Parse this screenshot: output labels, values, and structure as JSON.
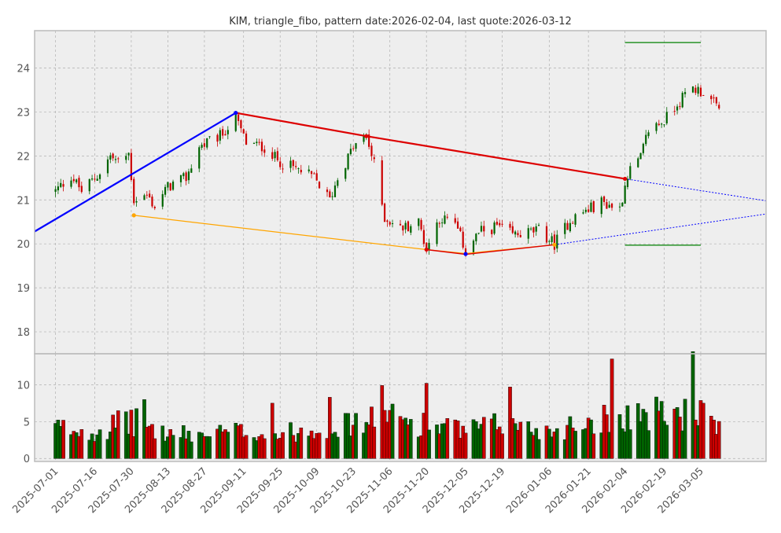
{
  "chart_data": {
    "type": "candlestick",
    "title": "KIM, triangle_fibo, pattern date:2026-02-04, last quote:2026-03-12",
    "xlabel": "",
    "ylabel": "",
    "grid": true,
    "price_panel": {
      "ylim": [
        17.5,
        24.85
      ],
      "yticks": [
        "18",
        "19",
        "20",
        "21",
        "22",
        "23",
        "24"
      ]
    },
    "volume_panel": {
      "ylim": [
        -0.4,
        14.2
      ],
      "yticks": [
        "0",
        "5",
        "10"
      ]
    },
    "xlim": [
      "2025-06-23",
      "2026-03-30"
    ],
    "xticks": [
      "2025-07-01",
      "2025-07-16",
      "2025-07-30",
      "2025-08-13",
      "2025-08-27",
      "2025-09-11",
      "2025-09-25",
      "2025-10-09",
      "2025-10-23",
      "2025-11-06",
      "2025-11-20",
      "2025-12-05",
      "2025-12-19",
      "2026-01-06",
      "2026-01-21",
      "2026-02-04",
      "2026-02-19",
      "2026-03-05"
    ],
    "price_path": [
      [
        "2025-07-01",
        21.2
      ],
      [
        "2025-07-07",
        21.55
      ],
      [
        "2025-07-11",
        21.2
      ],
      [
        "2025-07-17",
        21.55
      ],
      [
        "2025-07-22",
        22.0
      ],
      [
        "2025-07-25",
        21.85
      ],
      [
        "2025-07-29",
        22.05
      ],
      [
        "2025-07-31",
        21.0
      ],
      [
        "2025-08-05",
        21.1
      ],
      [
        "2025-08-08",
        20.85
      ],
      [
        "2025-08-13",
        21.3
      ],
      [
        "2025-08-20",
        21.5
      ],
      [
        "2025-08-25",
        22.2
      ],
      [
        "2025-09-02",
        22.45
      ],
      [
        "2025-09-08",
        22.85
      ],
      [
        "2025-09-12",
        22.3
      ],
      [
        "2025-09-19",
        22.2
      ],
      [
        "2025-09-24",
        21.9
      ],
      [
        "2025-10-01",
        21.7
      ],
      [
        "2025-10-08",
        21.5
      ],
      [
        "2025-10-14",
        21.0
      ],
      [
        "2025-10-17",
        21.5
      ],
      [
        "2025-10-23",
        22.2
      ],
      [
        "2025-10-28",
        22.45
      ],
      [
        "2025-10-31",
        21.8
      ],
      [
        "2025-11-04",
        20.6
      ],
      [
        "2025-11-10",
        20.35
      ],
      [
        "2025-11-17",
        20.5
      ],
      [
        "2025-11-20",
        19.9
      ],
      [
        "2025-11-25",
        20.6
      ],
      [
        "2025-12-01",
        20.45
      ],
      [
        "2025-12-05",
        19.85
      ],
      [
        "2025-12-10",
        20.25
      ],
      [
        "2025-12-17",
        20.4
      ],
      [
        "2025-12-23",
        20.2
      ],
      [
        "2026-01-02",
        20.3
      ],
      [
        "2026-01-08",
        20.0
      ],
      [
        "2026-01-14",
        20.55
      ],
      [
        "2026-01-20",
        20.75
      ],
      [
        "2026-01-26",
        20.95
      ],
      [
        "2026-02-02",
        20.8
      ],
      [
        "2026-02-05",
        21.6
      ],
      [
        "2026-02-10",
        21.95
      ],
      [
        "2026-02-13",
        22.6
      ],
      [
        "2026-02-19",
        22.8
      ],
      [
        "2026-02-24",
        23.2
      ],
      [
        "2026-03-02",
        23.55
      ],
      [
        "2026-03-06",
        23.45
      ],
      [
        "2026-03-12",
        23.05
      ]
    ],
    "volume_path": [
      [
        "2025-07-01",
        4.5
      ],
      [
        "2025-07-15",
        4.0
      ],
      [
        "2025-07-30",
        5.5
      ],
      [
        "2025-08-13",
        3.5
      ],
      [
        "2025-08-27",
        3.5
      ],
      [
        "2025-09-11",
        4.0
      ],
      [
        "2025-09-25",
        3.5
      ],
      [
        "2025-10-09",
        4.5
      ],
      [
        "2025-10-23",
        5.0
      ],
      [
        "2025-11-06",
        6.0
      ],
      [
        "2025-11-20",
        5.0
      ],
      [
        "2025-12-05",
        4.0
      ],
      [
        "2025-12-19",
        5.0
      ],
      [
        "2026-01-06",
        4.0
      ],
      [
        "2026-01-21",
        5.5
      ],
      [
        "2026-02-04",
        6.5
      ],
      [
        "2026-02-19",
        6.5
      ],
      [
        "2026-03-05",
        6.5
      ],
      [
        "2026-03-12",
        4.0
      ]
    ],
    "volume_spikes": [
      [
        "2025-08-04",
        8.0
      ],
      [
        "2025-09-22",
        7.5
      ],
      [
        "2025-10-14",
        8.3
      ],
      [
        "2025-11-03",
        9.9
      ],
      [
        "2025-11-20",
        10.2
      ],
      [
        "2025-12-22",
        9.7
      ],
      [
        "2026-01-30",
        13.5
      ],
      [
        "2026-03-02",
        14.5
      ]
    ],
    "lines": [
      {
        "color": "#0000ff",
        "width": 2.2,
        "points": [
          [
            "2025-06-23",
            20.28
          ],
          [
            "2025-09-08",
            22.98
          ]
        ]
      },
      {
        "color": "#dd0000",
        "width": 2.2,
        "points": [
          [
            "2025-09-08",
            22.98
          ],
          [
            "2025-10-28",
            22.45
          ],
          [
            "2026-02-04",
            21.48
          ]
        ]
      },
      {
        "color": "#ffa500",
        "width": 1.2,
        "points": [
          [
            "2025-07-31",
            20.65
          ],
          [
            "2025-11-20",
            19.87
          ],
          [
            "2025-12-05",
            19.78
          ],
          [
            "2026-01-08",
            19.98
          ]
        ]
      },
      {
        "color": "#dd0000",
        "width": 1.4,
        "points": [
          [
            "2025-11-20",
            19.87
          ],
          [
            "2025-12-05",
            19.76
          ],
          [
            "2026-01-08",
            19.98
          ]
        ]
      },
      {
        "color": "#0000ff",
        "width": 1.0,
        "dash": "2,2",
        "points": [
          [
            "2026-02-04",
            21.48
          ],
          [
            "2026-03-30",
            20.98
          ]
        ]
      },
      {
        "color": "#0000ff",
        "width": 1.0,
        "dash": "2,2",
        "points": [
          [
            "2026-01-08",
            19.98
          ],
          [
            "2026-03-30",
            20.68
          ]
        ]
      },
      {
        "color": "#008000",
        "width": 1.2,
        "points": [
          [
            "2026-02-04",
            24.58
          ],
          [
            "2026-03-05",
            24.58
          ]
        ]
      },
      {
        "color": "#008000",
        "width": 1.2,
        "points": [
          [
            "2026-02-04",
            19.97
          ],
          [
            "2026-03-05",
            19.97
          ]
        ]
      }
    ],
    "markers": [
      {
        "date": "2025-09-08",
        "value": 22.98,
        "color": "#0000ff"
      },
      {
        "date": "2025-10-28",
        "value": 22.45,
        "color": "#dd0000"
      },
      {
        "date": "2026-02-04",
        "value": 21.48,
        "color": "#dd0000"
      },
      {
        "date": "2025-07-31",
        "value": 20.65,
        "color": "#ffa500"
      },
      {
        "date": "2025-11-20",
        "value": 19.87,
        "color": "#dd0000"
      },
      {
        "date": "2025-12-05",
        "value": 19.77,
        "color": "#0000ff"
      },
      {
        "date": "2026-01-08",
        "value": 19.98,
        "color": "#ffa500"
      }
    ],
    "colors": {
      "up": "#006400",
      "down": "#cc0000",
      "panel_bg": "#eeeeee",
      "grid": "#b0b0b0",
      "frame": "#bbbbbb"
    }
  }
}
